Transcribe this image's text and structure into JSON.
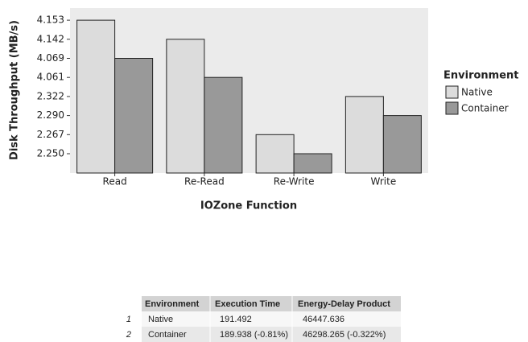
{
  "chart_data": {
    "type": "bar",
    "categories": [
      "Read",
      "Re-Read",
      "Re-Write",
      "Write"
    ],
    "series": [
      {
        "name": "Native",
        "color": "#dcdcdc",
        "values": [
          4.153,
          4.142,
          2.267,
          2.322
        ]
      },
      {
        "name": "Container",
        "color": "#999999",
        "values": [
          4.069,
          4.061,
          2.25,
          2.29
        ]
      }
    ],
    "y_scale": "discrete",
    "yticks": [
      {
        "value": 2.25,
        "label": "2.250"
      },
      2.267,
      {
        "value": 2.29,
        "label": "2.290"
      },
      2.322,
      4.061,
      4.069,
      4.142,
      4.153
    ],
    "xlabel": "IOZone Function",
    "ylabel": "Disk Throughput (MB/s)",
    "legend_title": "Environment",
    "legend": "right",
    "grid": false
  },
  "table": {
    "header": [
      "Environment",
      "Execution Time",
      "Energy-Delay Product"
    ],
    "rows": [
      {
        "index": "1",
        "cells": [
          "Native",
          "191.492",
          "46447.636"
        ]
      },
      {
        "index": "2",
        "cells": [
          "Container",
          "189.938 (-0.81%)",
          "46298.265 (-0.322%)"
        ]
      }
    ]
  }
}
